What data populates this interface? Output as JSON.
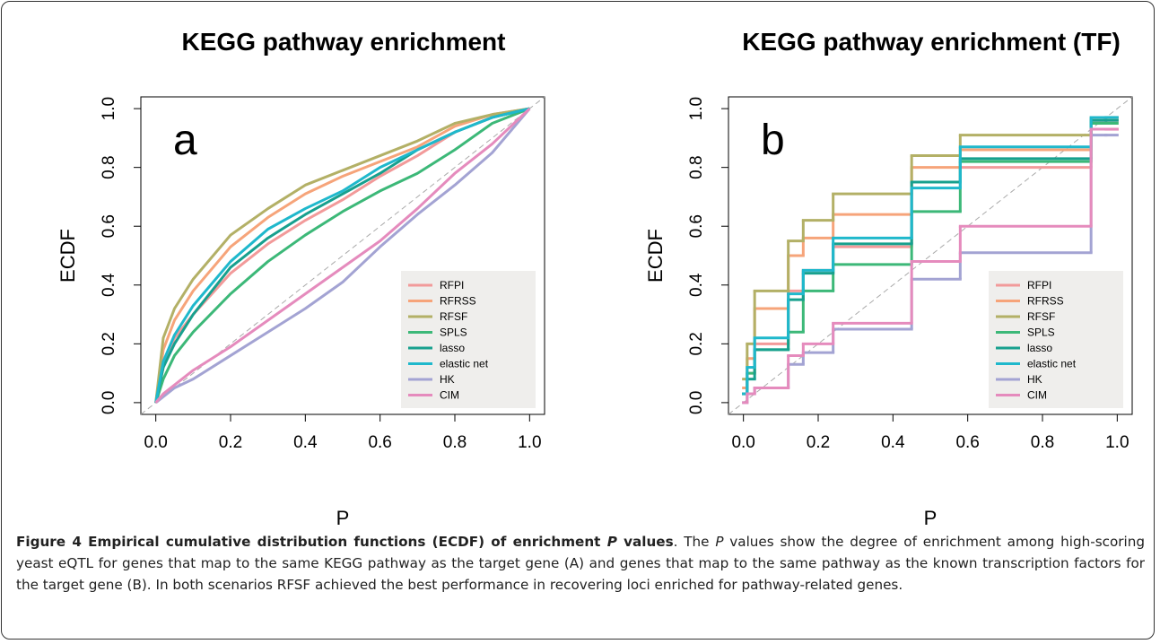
{
  "chart_data": [
    {
      "type": "line",
      "title": "KEGG pathway enrichment",
      "xlabel": "P",
      "ylabel": "ECDF",
      "annotation": "a",
      "step": false,
      "diagonal": true,
      "grid": false,
      "legend": "bottomright",
      "xlim": [
        -0.04,
        1.04
      ],
      "ylim": [
        -0.04,
        1.04
      ],
      "xticks": [
        {
          "value": 0,
          "label": "0.0"
        },
        0.2,
        0.4,
        0.6,
        0.8,
        {
          "value": 1,
          "label": "1.0"
        }
      ],
      "yticks": [
        {
          "value": 0,
          "label": "0.0"
        },
        0.2,
        0.4,
        0.6,
        0.8,
        {
          "value": 1,
          "label": "1.0"
        }
      ],
      "x": [
        0,
        0.02,
        0.05,
        0.1,
        0.2,
        0.3,
        0.4,
        0.5,
        0.6,
        0.7,
        0.8,
        0.9,
        1.0
      ],
      "series": [
        {
          "name": "RFPI",
          "color": "#f29a9a",
          "values": [
            0,
            0.12,
            0.22,
            0.3,
            0.44,
            0.54,
            0.62,
            0.69,
            0.77,
            0.84,
            0.92,
            0.97,
            1.0
          ]
        },
        {
          "name": "RFRSS",
          "color": "#f6a47a",
          "values": [
            0,
            0.18,
            0.28,
            0.38,
            0.53,
            0.63,
            0.71,
            0.77,
            0.82,
            0.87,
            0.94,
            0.98,
            1.0
          ]
        },
        {
          "name": "RFSF",
          "color": "#b3b066",
          "values": [
            0,
            0.22,
            0.32,
            0.42,
            0.57,
            0.66,
            0.74,
            0.79,
            0.84,
            0.89,
            0.95,
            0.98,
            1.0
          ]
        },
        {
          "name": "SPLS",
          "color": "#3cb878",
          "values": [
            0,
            0.08,
            0.16,
            0.24,
            0.37,
            0.48,
            0.57,
            0.65,
            0.72,
            0.78,
            0.86,
            0.95,
            1.0
          ]
        },
        {
          "name": "lasso",
          "color": "#17a08e",
          "values": [
            0,
            0.12,
            0.2,
            0.3,
            0.46,
            0.56,
            0.64,
            0.71,
            0.78,
            0.86,
            0.92,
            0.97,
            1.0
          ]
        },
        {
          "name": "elastic net",
          "color": "#1fb8cc",
          "values": [
            0,
            0.14,
            0.23,
            0.33,
            0.48,
            0.59,
            0.66,
            0.72,
            0.8,
            0.86,
            0.92,
            0.97,
            1.0
          ]
        },
        {
          "name": "HK",
          "color": "#a3a3d3",
          "values": [
            0,
            0.02,
            0.05,
            0.08,
            0.16,
            0.24,
            0.32,
            0.41,
            0.53,
            0.64,
            0.74,
            0.85,
            1.0
          ]
        },
        {
          "name": "CIM",
          "color": "#e58bbd",
          "values": [
            0,
            0.03,
            0.06,
            0.11,
            0.19,
            0.28,
            0.37,
            0.46,
            0.55,
            0.66,
            0.78,
            0.88,
            1.0
          ]
        }
      ]
    },
    {
      "type": "line",
      "title": "KEGG pathway enrichment (TF)",
      "xlabel": "P",
      "ylabel": "ECDF",
      "annotation": "b",
      "step": true,
      "diagonal": true,
      "grid": false,
      "legend": "bottomright",
      "xlim": [
        -0.04,
        1.04
      ],
      "ylim": [
        -0.04,
        1.04
      ],
      "xticks": [
        {
          "value": 0,
          "label": "0.0"
        },
        0.2,
        0.4,
        0.6,
        0.8,
        {
          "value": 1,
          "label": "1.0"
        }
      ],
      "yticks": [
        {
          "value": 0,
          "label": "0.0"
        },
        0.2,
        0.4,
        0.6,
        0.8,
        {
          "value": 1,
          "label": "1.0"
        }
      ],
      "x": [
        0,
        0.01,
        0.03,
        0.12,
        0.16,
        0.24,
        0.45,
        0.58,
        0.93,
        0.97,
        1.0
      ],
      "series": [
        {
          "name": "RFPI",
          "color": "#f29a9a",
          "values": [
            0.03,
            0.1,
            0.2,
            0.38,
            0.45,
            0.53,
            0.75,
            0.8,
            0.93,
            0.93,
            0.93
          ]
        },
        {
          "name": "RFRSS",
          "color": "#f6a47a",
          "values": [
            0.05,
            0.15,
            0.32,
            0.5,
            0.56,
            0.64,
            0.8,
            0.86,
            0.96,
            0.96,
            0.96
          ]
        },
        {
          "name": "RFSF",
          "color": "#b3b066",
          "values": [
            0.08,
            0.2,
            0.38,
            0.55,
            0.62,
            0.71,
            0.84,
            0.91,
            0.97,
            0.97,
            0.97
          ]
        },
        {
          "name": "SPLS",
          "color": "#3cb878",
          "values": [
            0.03,
            0.1,
            0.18,
            0.24,
            0.38,
            0.47,
            0.65,
            0.82,
            0.95,
            0.95,
            0.95
          ]
        },
        {
          "name": "lasso",
          "color": "#17a08e",
          "values": [
            0.03,
            0.08,
            0.18,
            0.35,
            0.44,
            0.54,
            0.75,
            0.83,
            0.96,
            0.96,
            0.96
          ]
        },
        {
          "name": "elastic net",
          "color": "#1fb8cc",
          "values": [
            0.03,
            0.12,
            0.22,
            0.37,
            0.45,
            0.56,
            0.73,
            0.87,
            0.97,
            0.97,
            0.97
          ]
        },
        {
          "name": "HK",
          "color": "#a3a3d3",
          "values": [
            0,
            0.03,
            0.05,
            0.13,
            0.17,
            0.25,
            0.42,
            0.51,
            0.91,
            0.91,
            0.91
          ]
        },
        {
          "name": "CIM",
          "color": "#e58bbd",
          "values": [
            0,
            0.03,
            0.05,
            0.16,
            0.2,
            0.27,
            0.48,
            0.6,
            0.93,
            0.93,
            0.93
          ]
        }
      ]
    }
  ],
  "caption": {
    "title": [
      "Figure 4 Empirical cumulative distribution functions (ECDF) of enrichment ",
      "P",
      " values"
    ],
    "body": [
      ". The ",
      "P",
      " values show the degree of enrichment among high-scoring yeast eQTL for genes that map to the same KEGG pathway as the target gene (A) and genes that map to the same pathway as the known transcription factors for the target gene (B). In both scenarios RFSF achieved the best performance in recovering loci enriched for pathway-related genes."
    ]
  }
}
